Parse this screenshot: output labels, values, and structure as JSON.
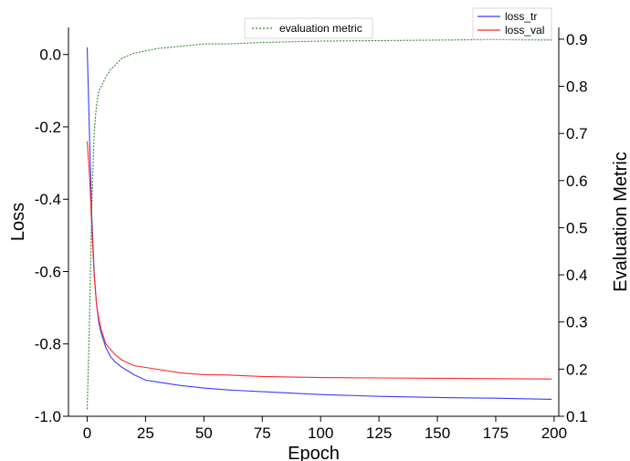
{
  "chart_data": {
    "type": "line",
    "xlabel": "Epoch",
    "ylabel": "Loss",
    "y2label": "Evaluation Metric",
    "xlim": [
      -8,
      202
    ],
    "ylim": [
      -1.0,
      0.075
    ],
    "y2lim": [
      0.1,
      0.925
    ],
    "xticks": [
      0,
      25,
      50,
      75,
      100,
      125,
      150,
      175,
      200
    ],
    "yticks": [
      0.0,
      -0.2,
      -0.4,
      -0.6,
      -0.8,
      -1.0
    ],
    "y2ticks": [
      0.1,
      0.2,
      0.3,
      0.4,
      0.5,
      0.6,
      0.7,
      0.8,
      0.9
    ],
    "grid": false,
    "series": [
      {
        "name": "loss_tr",
        "axis": "left",
        "color": "#3b3bff",
        "style": "solid",
        "x": [
          0,
          1,
          2,
          3,
          4,
          5,
          6,
          7,
          8,
          10,
          12,
          15,
          20,
          25,
          30,
          40,
          50,
          60,
          75,
          100,
          125,
          150,
          175,
          199
        ],
        "y": [
          0.02,
          -0.22,
          -0.45,
          -0.6,
          -0.69,
          -0.74,
          -0.77,
          -0.79,
          -0.81,
          -0.835,
          -0.85,
          -0.865,
          -0.885,
          -0.9,
          -0.905,
          -0.915,
          -0.922,
          -0.927,
          -0.932,
          -0.94,
          -0.945,
          -0.948,
          -0.95,
          -0.953
        ]
      },
      {
        "name": "loss_val",
        "axis": "left",
        "color": "#ff2a2a",
        "style": "solid",
        "x": [
          0,
          1,
          2,
          3,
          4,
          5,
          6,
          7,
          8,
          10,
          12,
          15,
          20,
          25,
          30,
          40,
          50,
          60,
          75,
          100,
          125,
          150,
          175,
          199
        ],
        "y": [
          -0.24,
          -0.33,
          -0.48,
          -0.61,
          -0.69,
          -0.73,
          -0.76,
          -0.78,
          -0.8,
          -0.815,
          -0.83,
          -0.845,
          -0.86,
          -0.865,
          -0.87,
          -0.88,
          -0.885,
          -0.886,
          -0.89,
          -0.893,
          -0.894,
          -0.895,
          -0.896,
          -0.897
        ]
      },
      {
        "name": "evaluation metric",
        "axis": "right",
        "color": "#2e8b2e",
        "style": "dotted",
        "x": [
          0,
          1,
          2,
          3,
          4,
          5,
          6,
          7,
          8,
          10,
          12,
          15,
          20,
          25,
          30,
          40,
          50,
          60,
          75,
          100,
          125,
          150,
          175,
          199
        ],
        "y": [
          0.115,
          0.3,
          0.55,
          0.7,
          0.76,
          0.79,
          0.8,
          0.81,
          0.82,
          0.835,
          0.845,
          0.86,
          0.87,
          0.875,
          0.88,
          0.885,
          0.89,
          0.89,
          0.893,
          0.896,
          0.897,
          0.898,
          0.899,
          0.898
        ]
      }
    ],
    "legends": [
      {
        "placement": "top-center",
        "entries": [
          "evaluation metric"
        ]
      },
      {
        "placement": "top-right",
        "entries": [
          "loss_tr",
          "loss_val"
        ]
      }
    ]
  }
}
